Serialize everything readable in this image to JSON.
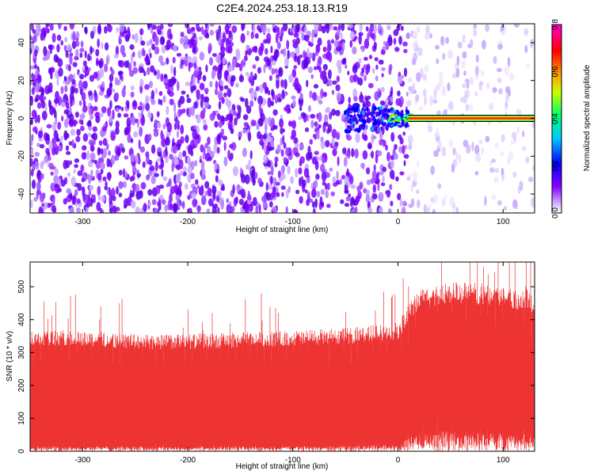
{
  "title": "C2E4.2024.253.18.13.R19",
  "chart_data": [
    {
      "type": "heatmap",
      "xlabel": "Height of straight line (km)",
      "ylabel": "Frequency (Hz)",
      "xlim": [
        -350,
        130
      ],
      "ylim": [
        -50,
        50
      ],
      "xticks": [
        -300,
        -200,
        -100,
        0,
        100
      ],
      "yticks": [
        -40,
        -20,
        0,
        20,
        40
      ],
      "colorbar": {
        "label": "Normalized spectral amplitude",
        "range": [
          0.0,
          0.8
        ],
        "ticks": [
          "0.0",
          "0.2",
          "0.4",
          "0.6",
          "0.8"
        ],
        "colors": [
          "#ffffff",
          "#c8a8ff",
          "#8800ff",
          "#0000ff",
          "#00ffff",
          "#00ff00",
          "#ffff00",
          "#ff8000",
          "#ff0000",
          "#ff00ff"
        ]
      },
      "features": {
        "noise_amplitude_left": 0.05,
        "noise_amplitude_right": 0.02,
        "transition_height_km": 0,
        "signal_line": {
          "frequency_hz": 0,
          "from_height_km": 10,
          "to_height_km": 130,
          "amplitude": 0.8
        },
        "signal_onset": {
          "from_height_km": -50,
          "to_height_km": 10,
          "amplitude": 0.3
        }
      }
    },
    {
      "type": "area",
      "xlabel": "Height of straight line (km)",
      "ylabel": "SNR (10 * v/v)",
      "xlim": [
        -350,
        130
      ],
      "ylim": [
        0,
        575
      ],
      "xticks": [
        -300,
        -200,
        -100,
        0,
        100
      ],
      "yticks": [
        0,
        100,
        200,
        300,
        400,
        500
      ],
      "series": [
        {
          "color": "#ee3333",
          "x": [
            -350,
            -300,
            -250,
            -200,
            -150,
            -100,
            -50,
            -20,
            0,
            20,
            50,
            100,
            130
          ],
          "upper_envelope": [
            320,
            320,
            310,
            310,
            315,
            320,
            325,
            335,
            340,
            430,
            450,
            440,
            420
          ],
          "lower_envelope": [
            15,
            15,
            15,
            15,
            15,
            15,
            15,
            20,
            20,
            60,
            60,
            55,
            50
          ],
          "peak_values": [
            {
              "x": -345,
              "y": 340
            },
            {
              "x": -265,
              "y": 450
            },
            {
              "x": -130,
              "y": 480
            },
            {
              "x": 5,
              "y": 525
            },
            {
              "x": 92,
              "y": 545
            },
            {
              "x": 122,
              "y": 575
            }
          ]
        }
      ]
    }
  ]
}
